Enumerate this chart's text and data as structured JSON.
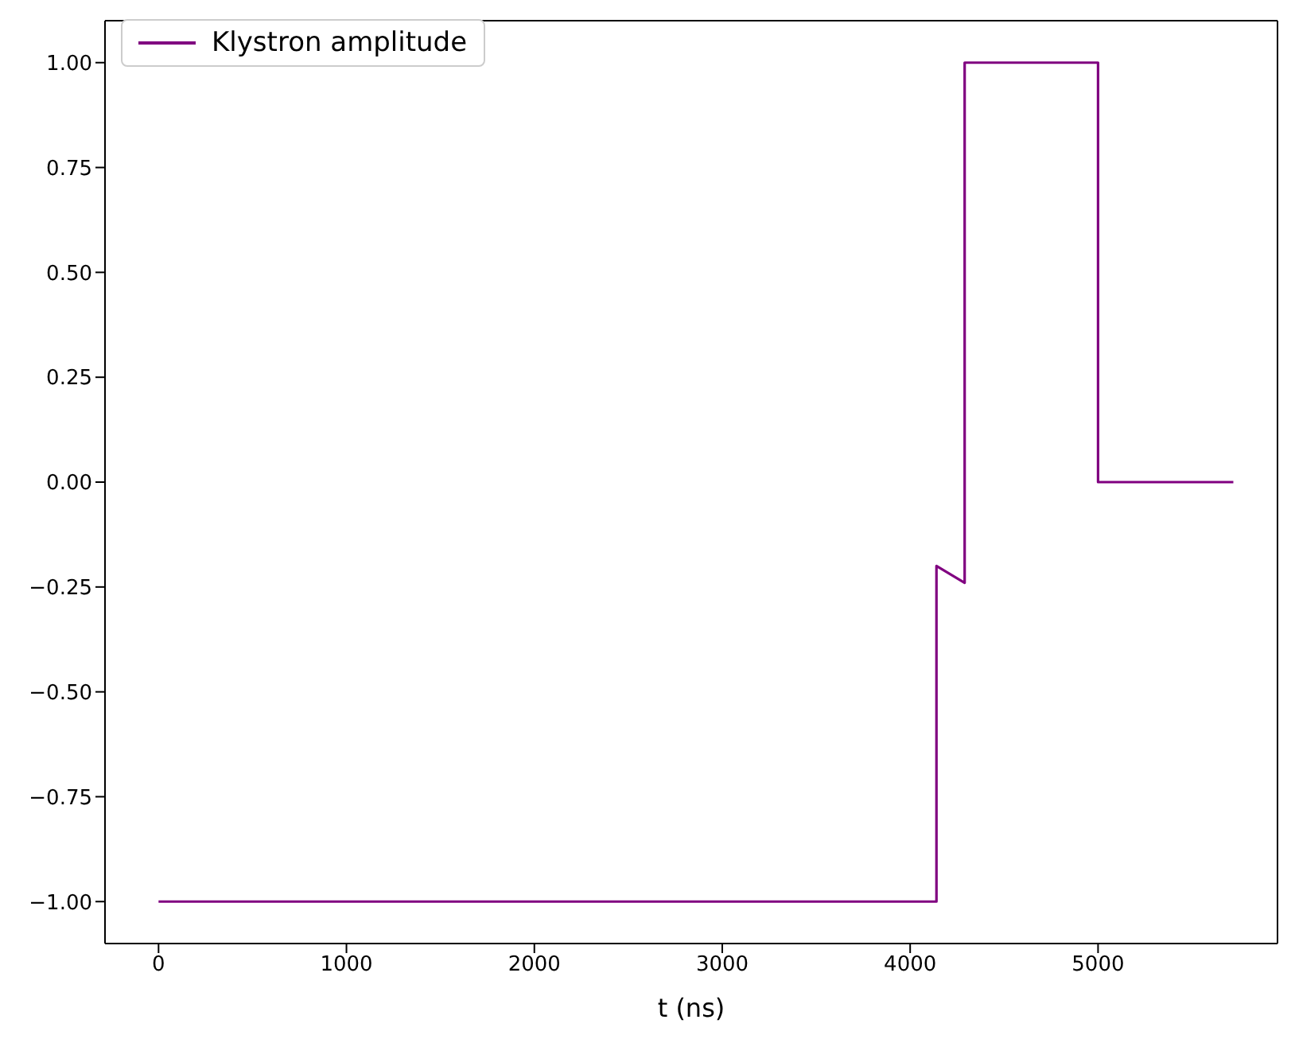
{
  "chart_data": {
    "type": "line",
    "xlabel": "t (ns)",
    "series": [
      {
        "name": "Klystron amplitude",
        "color": "#800080",
        "x": [
          0,
          4140,
          4140,
          4290,
          4290,
          5000,
          5000,
          5720
        ],
        "values": [
          -1,
          -1,
          -0.2,
          -0.24,
          1,
          1,
          0,
          0
        ]
      }
    ],
    "xlim": [
      -285,
      5955
    ],
    "ylim": [
      -1.1,
      1.1
    ],
    "xticks": [
      0,
      1000,
      2000,
      3000,
      4000,
      5000
    ],
    "yticks": [
      {
        "value": -1,
        "label": "−1.00"
      },
      {
        "value": -0.75,
        "label": "−0.75"
      },
      {
        "value": -0.5,
        "label": "−0.50"
      },
      {
        "value": -0.25,
        "label": "−0.25"
      },
      {
        "value": 0,
        "label": "0.00"
      },
      {
        "value": 0.25,
        "label": "0.25"
      },
      {
        "value": 0.5,
        "label": "0.50"
      },
      {
        "value": 0.75,
        "label": "0.75"
      },
      {
        "value": 1,
        "label": "1.00"
      }
    ],
    "grid": false,
    "legend": "top left",
    "marker": "none",
    "line_style": "solid"
  }
}
